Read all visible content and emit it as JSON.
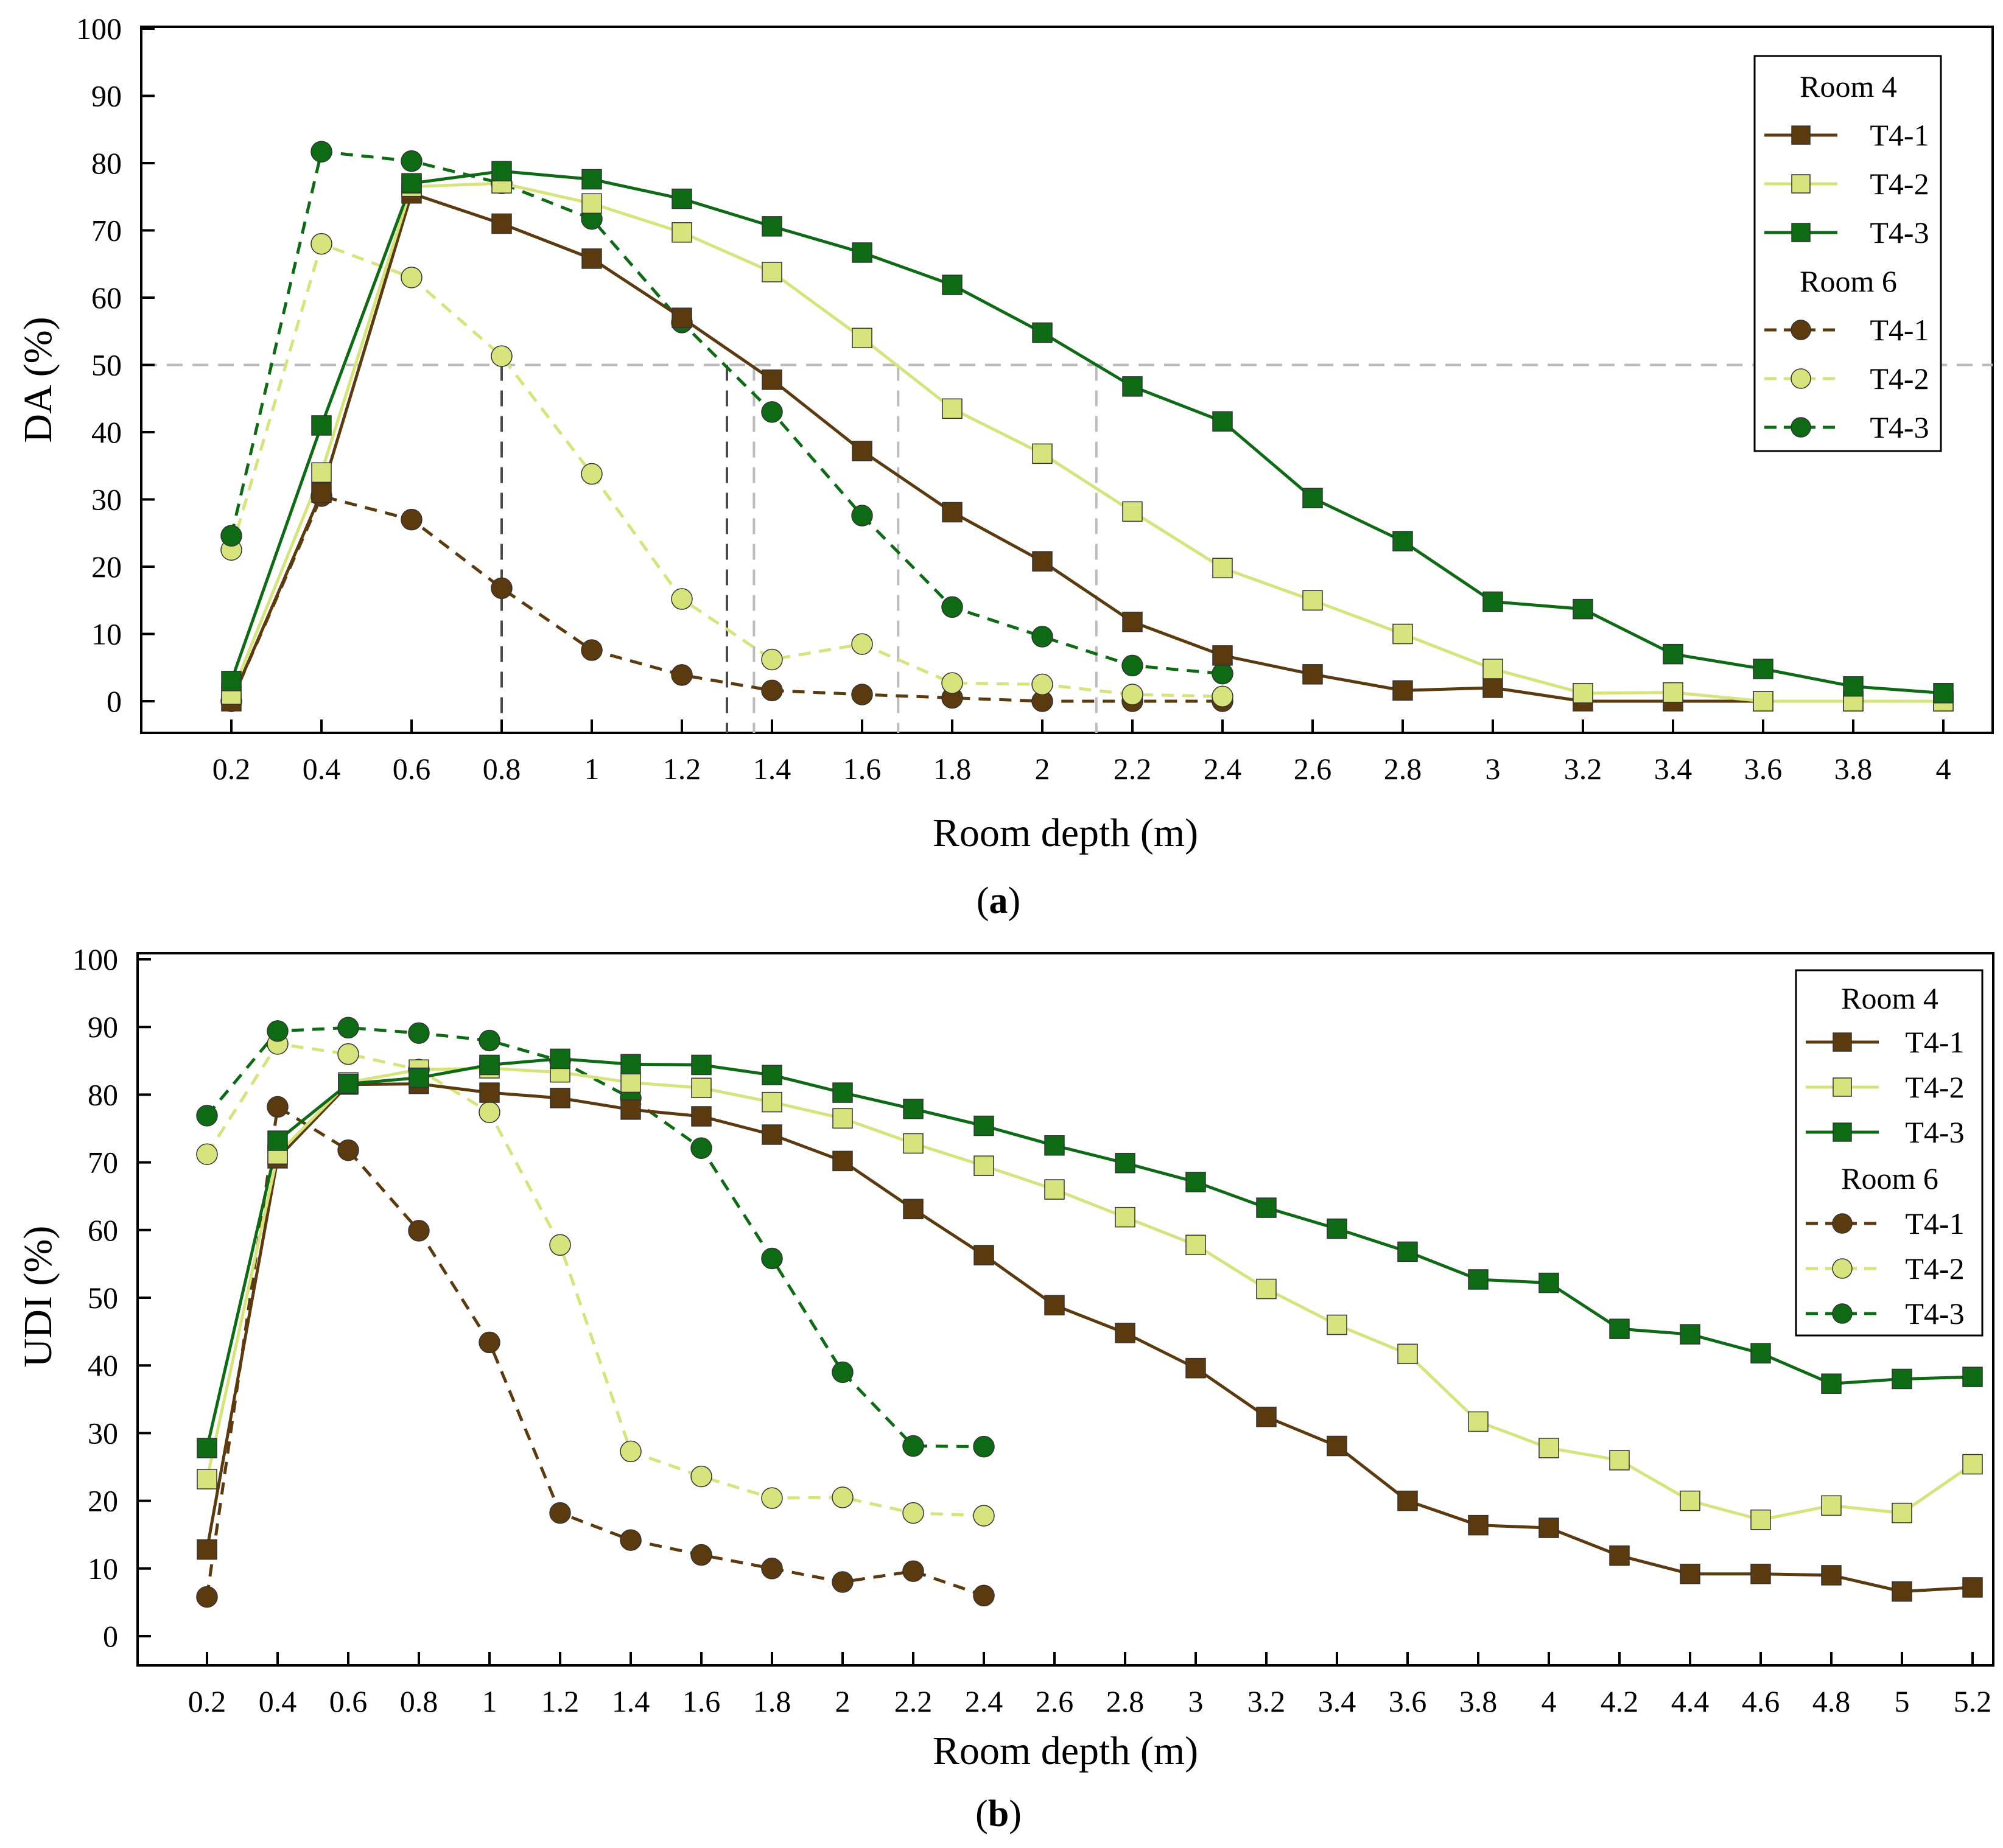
{
  "colors": {
    "T4-1": "#5c3a10",
    "T4-2": "#d7e37d",
    "T4-3": "#0f6a16",
    "ref_dark": "#4a4a4a",
    "ref_light": "#bcbcbc"
  },
  "chart_data": [
    {
      "type": "line",
      "panel_label": "(a)",
      "panel_letter": "a",
      "xlabel": "Room depth (m)",
      "ylabel": "DA (%)",
      "ylim": [
        0,
        100
      ],
      "yticks": [
        0,
        10,
        20,
        30,
        40,
        50,
        60,
        70,
        80,
        90,
        100
      ],
      "x_categories": [
        "0.2",
        "0.4",
        "0.6",
        "0.8",
        "1",
        "1.2",
        "1.4",
        "1.6",
        "1.8",
        "2",
        "2.2",
        "2.4",
        "2.6",
        "2.8",
        "3",
        "3.2",
        "3.4",
        "3.6",
        "3.8",
        "4"
      ],
      "reference_line": {
        "y": 50,
        "style": "dashed"
      },
      "drop_lines": [
        {
          "x": 0.8,
          "tone": "dark"
        },
        {
          "x": 1.3,
          "tone": "dark"
        },
        {
          "x": 1.36,
          "tone": "light"
        },
        {
          "x": 1.68,
          "tone": "light"
        },
        {
          "x": 2.12,
          "tone": "light"
        }
      ],
      "legend": {
        "position": "top-right",
        "group_titles": [
          "Room 4",
          "Room 6"
        ]
      },
      "series": [
        {
          "name": "T4-1",
          "room": "Room 4",
          "marker": "square",
          "style": "solid",
          "x": [
            0.2,
            0.4,
            0.6,
            0.8,
            1,
            1.2,
            1.4,
            1.6,
            1.8,
            2,
            2.2,
            2.4,
            2.6,
            2.8,
            3,
            3.2,
            3.4,
            3.6,
            3.8,
            4
          ],
          "values": [
            0,
            31,
            75.5,
            71,
            65.8,
            57,
            47.8,
            37.2,
            28.1,
            20.8,
            11.8,
            6.8,
            4,
            1.6,
            2,
            0,
            0,
            0,
            0,
            0
          ]
        },
        {
          "name": "T4-2",
          "room": "Room 4",
          "marker": "square",
          "style": "solid",
          "x": [
            0.2,
            0.4,
            0.6,
            0.8,
            1,
            1.2,
            1.4,
            1.6,
            1.8,
            2,
            2.2,
            2.4,
            2.6,
            2.8,
            3,
            3.2,
            3.4,
            3.6,
            3.8,
            4
          ],
          "values": [
            1,
            34,
            76.5,
            77,
            74,
            69.7,
            63.8,
            54,
            43.5,
            36.8,
            28.2,
            19.8,
            15,
            10,
            4.8,
            1.2,
            1.3,
            0,
            0,
            0
          ]
        },
        {
          "name": "T4-3",
          "room": "Room 4",
          "marker": "square",
          "style": "solid",
          "x": [
            0.2,
            0.4,
            0.6,
            0.8,
            1,
            1.2,
            1.4,
            1.6,
            1.8,
            2,
            2.2,
            2.4,
            2.6,
            2.8,
            3,
            3.2,
            3.4,
            3.6,
            3.8,
            4
          ],
          "values": [
            3,
            41,
            77,
            78.8,
            77.6,
            74.7,
            70.6,
            66.7,
            61.9,
            54.8,
            46.8,
            41.6,
            30.2,
            23.8,
            14.8,
            13.7,
            7,
            4.8,
            2.2,
            1.2
          ]
        },
        {
          "name": "T4-1",
          "room": "Room 6",
          "marker": "circle",
          "style": "dashed",
          "x": [
            0.2,
            0.4,
            0.6,
            0.8,
            1,
            1.2,
            1.4,
            1.6,
            1.8,
            2,
            2.2,
            2.4
          ],
          "values": [
            0,
            30.5,
            27,
            16.8,
            7.6,
            3.9,
            1.6,
            1,
            0.5,
            0,
            0,
            0
          ]
        },
        {
          "name": "T4-2",
          "room": "Room 6",
          "marker": "circle",
          "style": "dashed",
          "x": [
            0.2,
            0.4,
            0.6,
            0.8,
            1,
            1.2,
            1.4,
            1.6,
            1.8,
            2,
            2.2,
            2.4
          ],
          "values": [
            22.5,
            68,
            63,
            51.3,
            33.8,
            15.2,
            6.2,
            8.5,
            2.7,
            2.5,
            1,
            0.7
          ]
        },
        {
          "name": "T4-3",
          "room": "Room 6",
          "marker": "circle",
          "style": "dashed",
          "x": [
            0.2,
            0.4,
            0.6,
            0.8,
            1,
            1.2,
            1.4,
            1.6,
            1.8,
            2,
            2.2,
            2.4
          ],
          "values": [
            24.6,
            81.7,
            80.3,
            77,
            71.7,
            56.3,
            43,
            27.6,
            14,
            9.6,
            5.3,
            4.1
          ]
        }
      ]
    },
    {
      "type": "line",
      "panel_label": "(b)",
      "panel_letter": "b",
      "xlabel": "Room depth (m)",
      "ylabel": "UDI (%)",
      "ylim": [
        0,
        100
      ],
      "yticks": [
        0,
        10,
        20,
        30,
        40,
        50,
        60,
        70,
        80,
        90,
        100
      ],
      "x_categories": [
        "0.2",
        "0.4",
        "0.6",
        "0.8",
        "1",
        "1.2",
        "1.4",
        "1.6",
        "1.8",
        "2",
        "2.2",
        "2.4",
        "2.6",
        "2.8",
        "3",
        "3.2",
        "3.4",
        "3.6",
        "3.8",
        "4",
        "4.2",
        "4.4",
        "4.6",
        "4.8",
        "5",
        "5.2"
      ],
      "legend": {
        "position": "top-right",
        "group_titles": [
          "Room 4",
          "Room 6"
        ]
      },
      "series": [
        {
          "name": "T4-1",
          "room": "Room 4",
          "marker": "square",
          "style": "solid",
          "x": [
            0.2,
            0.4,
            0.6,
            0.8,
            1,
            1.2,
            1.4,
            1.6,
            1.8,
            2,
            2.2,
            2.4,
            2.6,
            2.8,
            3,
            3.2,
            3.4,
            3.6,
            3.8,
            4,
            4.2,
            4.4,
            4.6,
            4.8,
            5,
            5.2
          ],
          "values": [
            12.8,
            70.6,
            81.5,
            81.6,
            80.3,
            79.5,
            77.8,
            76.8,
            74.1,
            70.2,
            63.1,
            56.3,
            48.9,
            44.8,
            39.6,
            32.4,
            28.1,
            20,
            16.4,
            16,
            11.9,
            9.2,
            9.2,
            9,
            6.6,
            7.2
          ]
        },
        {
          "name": "T4-2",
          "room": "Room 4",
          "marker": "square",
          "style": "solid",
          "x": [
            0.2,
            0.4,
            0.6,
            0.8,
            1,
            1.2,
            1.4,
            1.6,
            1.8,
            2,
            2.2,
            2.4,
            2.6,
            2.8,
            3,
            3.2,
            3.4,
            3.6,
            3.8,
            4,
            4.2,
            4.4,
            4.6,
            4.8,
            5,
            5.2
          ],
          "values": [
            23.2,
            71.2,
            81.8,
            83.7,
            83.9,
            83.3,
            81.8,
            81,
            78.9,
            76.5,
            72.8,
            69.5,
            66,
            61.9,
            57.8,
            51.3,
            46,
            41.7,
            31.7,
            27.8,
            26,
            20,
            17.2,
            19.3,
            18.2,
            25.4
          ]
        },
        {
          "name": "T4-3",
          "room": "Room 4",
          "marker": "square",
          "style": "solid",
          "x": [
            0.2,
            0.4,
            0.6,
            0.8,
            1,
            1.2,
            1.4,
            1.6,
            1.8,
            2,
            2.2,
            2.4,
            2.6,
            2.8,
            3,
            3.2,
            3.4,
            3.6,
            3.8,
            4,
            4.2,
            4.4,
            4.6,
            4.8,
            5,
            5.2
          ],
          "values": [
            27.8,
            73.2,
            81.6,
            82.5,
            84.4,
            85.3,
            84.5,
            84.4,
            82.9,
            80.3,
            77.9,
            75.4,
            72.5,
            69.9,
            67.1,
            63.3,
            60.2,
            56.8,
            52.7,
            52.2,
            45.4,
            44.6,
            41.8,
            37.3,
            38,
            38.3
          ]
        },
        {
          "name": "T4-1",
          "room": "Room 6",
          "marker": "circle",
          "style": "dashed",
          "x": [
            0.2,
            0.4,
            0.6,
            0.8,
            1,
            1.2,
            1.4,
            1.6,
            1.8,
            2,
            2.2,
            2.4
          ],
          "values": [
            5.8,
            78.2,
            71.8,
            59.9,
            43.4,
            18.2,
            14.2,
            12,
            10,
            8,
            9.6,
            6
          ]
        },
        {
          "name": "T4-2",
          "room": "Room 6",
          "marker": "circle",
          "style": "dashed",
          "x": [
            0.2,
            0.4,
            0.6,
            0.8,
            1,
            1.2,
            1.4,
            1.6,
            1.8,
            2,
            2.2,
            2.4
          ],
          "values": [
            71.2,
            87.5,
            86,
            83.7,
            77.4,
            57.8,
            27.3,
            23.6,
            20.4,
            20.5,
            18.2,
            17.8
          ]
        },
        {
          "name": "T4-3",
          "room": "Room 6",
          "marker": "circle",
          "style": "dashed",
          "x": [
            0.2,
            0.4,
            0.6,
            0.8,
            1,
            1.2,
            1.4,
            1.6,
            1.8,
            2,
            2.2,
            2.4
          ],
          "values": [
            76.9,
            89.4,
            89.9,
            89.1,
            88,
            85,
            79.5,
            72.1,
            55.8,
            39,
            28.1,
            28
          ]
        }
      ]
    }
  ]
}
